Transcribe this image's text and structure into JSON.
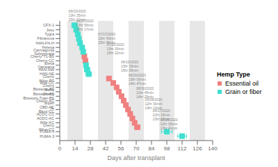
{
  "chart_data": {
    "type": "scatter",
    "xlabel": "Days after transplant",
    "xlim": [
      0,
      140
    ],
    "xticks": [
      0,
      14,
      28,
      42,
      56,
      70,
      84,
      98,
      112,
      126,
      140
    ],
    "grid": false,
    "legend": "right",
    "legend_title": "Hemp Type",
    "categories": [
      "CFX-1",
      "Joey",
      "Tygra",
      "Fibranova",
      "HAN-FN-H",
      "Helena",
      "Carmagnola Selezionata",
      "Cherry*T1-BS",
      "Cherry-CC",
      "Eletta Campana",
      "HAN-NW",
      "HAN-NE",
      "Cherry Wine-BS",
      "Wife-CC",
      "Cherry Blossom-BS",
      "Berry Blossom-BS",
      "Cherry Blossom-Tuan-BS",
      "Cherry-AC",
      "Super CBD-AC",
      "JL Baux-CC",
      "ACDC-CC",
      "ACDC-AC",
      "Wife-AC",
      "Cherry Wine-CC",
      "PUMA-4",
      "PUMA-3"
    ],
    "series": [
      {
        "name": "Essential oil",
        "color": "#f08080",
        "marker": "square",
        "values": [
          null,
          null,
          null,
          null,
          null,
          null,
          null,
          22.5,
          23.5,
          null,
          null,
          null,
          45.0,
          49.0,
          52.0,
          54.0,
          56.5,
          58.5,
          60.5,
          62.5,
          64.5,
          66.5,
          68.5,
          71.0,
          null,
          null
        ],
        "errors": [
          null,
          null,
          null,
          null,
          null,
          null,
          null,
          1.5,
          1.5,
          null,
          null,
          null,
          2.0,
          2.0,
          2.0,
          2.0,
          2.0,
          2.0,
          2.0,
          2.0,
          2.0,
          2.0,
          2.0,
          2.5,
          null,
          null
        ]
      },
      {
        "name": "Grain or fiber",
        "color": "#40e0d0",
        "marker": "square",
        "values": [
          13.5,
          15.0,
          16.5,
          17.5,
          18.5,
          20.5,
          21.5,
          null,
          null,
          24.0,
          25.0,
          26.5,
          null,
          null,
          null,
          null,
          null,
          null,
          null,
          null,
          null,
          null,
          null,
          null,
          98.0,
          112.0
        ],
        "errors": [
          2.5,
          2.0,
          2.0,
          1.5,
          1.5,
          2.0,
          1.5,
          null,
          null,
          2.0,
          2.5,
          2.5,
          null,
          null,
          null,
          null,
          null,
          null,
          null,
          null,
          null,
          null,
          null,
          null,
          5.0,
          4.0
        ]
      }
    ],
    "shaded_bands": [
      [
        7,
        21
      ],
      [
        35,
        49
      ],
      [
        63,
        77
      ],
      [
        91,
        105
      ],
      [
        119,
        133
      ]
    ],
    "band_color": "#d3d3d3",
    "annotation_color": "#888888",
    "annotations": [
      {
        "x": 8,
        "y": 26.0,
        "lines": [
          "06/03/2020",
          "13hr 35min",
          "15hr 12min"
        ]
      },
      {
        "x": 15,
        "y": 23.8,
        "lines": [
          "06/21/2020",
          "13hr 56min",
          "15hr 17min"
        ]
      },
      {
        "x": 35,
        "y": 20.8,
        "lines": [
          "07/17/2020",
          "13hr 43min",
          "15hr 46min"
        ]
      },
      {
        "x": 43,
        "y": 18.5,
        "lines": [
          "07/20/2020",
          "13hr 30min",
          "15hr 22min"
        ]
      },
      {
        "x": 56,
        "y": 14.5,
        "lines": [
          "08/10/2020",
          "13hr 15min",
          "15hr 05min"
        ]
      },
      {
        "x": 63,
        "y": 11.5,
        "lines": [
          "08/20/2020",
          "13hr 00min",
          "14hr 47min"
        ]
      },
      {
        "x": 70,
        "y": 8.5,
        "lines": [
          "08/30/2020",
          "12hr 45min",
          "14hr 29min"
        ]
      },
      {
        "x": 78,
        "y": 6.0,
        "lines": [
          "09/08/2020",
          "12hr 30min",
          "14hr 13min"
        ]
      },
      {
        "x": 85,
        "y": 3.5,
        "lines": [
          "09/17/2020",
          "12hr 15min",
          "13hr 17min"
        ]
      },
      {
        "x": 92,
        "y": 1.5,
        "lines": [
          "09/26/2020",
          "12hr 00min",
          "13hr 41min"
        ]
      }
    ]
  }
}
